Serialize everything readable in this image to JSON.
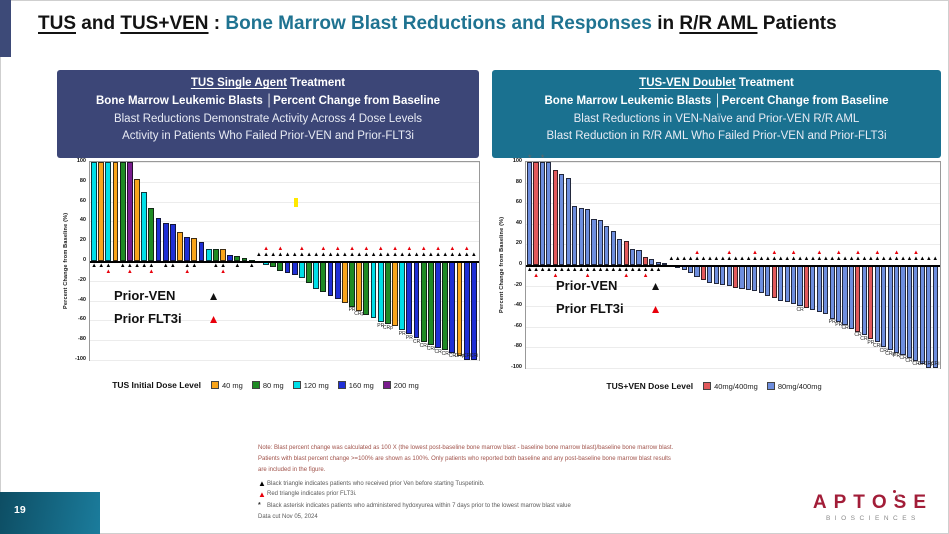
{
  "title": {
    "seg_tus": "TUS",
    "seg_and": " and ",
    "seg_tusven": "TUS+VEN",
    "seg_colon": " : ",
    "seg_main": "Bone Marrow Blast Reductions and Responses",
    "seg_in": " in ",
    "seg_rraml": "R/R AML",
    "seg_patients": " Patients"
  },
  "left_panel_header": {
    "line1_underlined": "TUS Single Agent",
    "line1_rest": " Treatment",
    "line2": "Bone Marrow Leukemic Blasts │Percent Change from Baseline",
    "line3": "Blast Reductions Demonstrate Activity Across 4 Dose Levels",
    "line4": "Activity in Patients Who Failed Prior-VEN and Prior-FLT3i",
    "bg_color": "#3C4677"
  },
  "right_panel_header": {
    "line1_underlined": "TUS-VEN Doublet",
    "line1_rest": " Treatment",
    "line2": "Bone Marrow Leukemic Blasts │Percent Change from Baseline",
    "line3": "Blast Reductions in VEN-Naïve and Prior-VEN R/R AML",
    "line4": "Blast Reduction in R/R AML Who Failed Prior-VEN and Prior-FLT3i",
    "bg_color": "#1A7190"
  },
  "annotation": {
    "prior_ven": "Prior-VEN",
    "prior_flt3i": "Prior FLT3i",
    "triangle": "▲"
  },
  "footnotes": {
    "note": "Note: Blast percent change was calculated as 100 X (the lowest post-baseline bone marrow blast - baseline bone marrow blast)/baseline bone marrow blast. Patients with blast percent change >=100% are shown as 100%. Only patients who reported both baseline and any post-baseline bone marrow blast results are included in the figure.",
    "black_triangle_line": "Black triangle indicates patients who received prior Ven before starting Tuspetinib.",
    "red_triangle_line": "Red triangle indicates prior FLT3i.",
    "asterisk_mark": "*",
    "asterisk_line": "Black asterisk indicates patients who administered hydoxyurea within 7 days prior to the lowest marrow blast value",
    "datacut": "Data cut Nov 05, 2024"
  },
  "page_number": "19",
  "logo": {
    "p1": "APT",
    "o": "O",
    "p2": "SE",
    "sub": "BIOSCIENCES",
    "brand_color": "#A21D38"
  },
  "chart_data": [
    {
      "type": "bar",
      "variant": "waterfall",
      "ylabel": "Percent Change from Baseline (%)",
      "ylim": [
        -100,
        100
      ],
      "yticks": [
        100,
        80,
        60,
        40,
        20,
        0,
        -20,
        -40,
        -60,
        -80,
        -100
      ],
      "grid": true,
      "legend_position": "bottom",
      "legend_title": "TUS Initial Dose Level",
      "colors": {
        "o": "#F9A51B",
        "g": "#1F8B24",
        "c": "#00DFE8",
        "b": "#1F2FD6",
        "p": "#7A1C8E"
      },
      "legend": [
        {
          "label": "40 mg",
          "key": "o",
          "color": "#F9A51B"
        },
        {
          "label": "80 mg",
          "key": "g",
          "color": "#1F8B24"
        },
        {
          "label": "120 mg",
          "key": "c",
          "color": "#00DFE8"
        },
        {
          "label": "160 mg",
          "key": "b",
          "color": "#1F2FD6"
        },
        {
          "label": "200 mg",
          "key": "p",
          "color": "#7A1C8E"
        }
      ],
      "marker_legend": {
        "black_triangle": "Prior-VEN",
        "red_triangle": "Prior FLT3i"
      },
      "bars": [
        {
          "v": 100,
          "c": "c",
          "m": "b"
        },
        {
          "v": 100,
          "c": "o",
          "m": "b"
        },
        {
          "v": 100,
          "c": "c",
          "m": "br"
        },
        {
          "v": 100,
          "c": "o"
        },
        {
          "v": 100,
          "c": "g",
          "m": "b"
        },
        {
          "v": 100,
          "c": "p",
          "m": "br"
        },
        {
          "v": 83,
          "c": "o",
          "m": "b"
        },
        {
          "v": 70,
          "c": "c",
          "m": "b"
        },
        {
          "v": 54,
          "c": "g",
          "m": "br"
        },
        {
          "v": 43,
          "c": "b"
        },
        {
          "v": 38,
          "c": "b",
          "m": "b"
        },
        {
          "v": 37,
          "c": "b",
          "m": "b"
        },
        {
          "v": 29,
          "c": "o"
        },
        {
          "v": 24,
          "c": "b",
          "m": "br"
        },
        {
          "v": 23,
          "c": "o",
          "m": "b"
        },
        {
          "v": 19,
          "c": "b"
        },
        {
          "v": 12,
          "c": "c"
        },
        {
          "v": 12,
          "c": "g",
          "m": "b"
        },
        {
          "v": 12,
          "c": "o",
          "m": "br"
        },
        {
          "v": 6,
          "c": "b"
        },
        {
          "v": 5,
          "c": "g",
          "m": "b"
        },
        {
          "v": 3,
          "c": "g"
        },
        {
          "v": 1,
          "c": "g",
          "m": "b"
        },
        {
          "v": -2,
          "c": "c",
          "m": "b"
        },
        {
          "v": -4,
          "c": "c",
          "m": "br"
        },
        {
          "v": -6,
          "c": "g",
          "m": "b"
        },
        {
          "v": -10,
          "c": "g",
          "m": "br"
        },
        {
          "v": -12,
          "c": "b",
          "m": "b"
        },
        {
          "v": -14,
          "c": "b",
          "m": "b"
        },
        {
          "v": -17,
          "c": "c",
          "m": "br"
        },
        {
          "v": -22,
          "c": "g",
          "m": "b"
        },
        {
          "v": -28,
          "c": "c",
          "m": "b"
        },
        {
          "v": -31,
          "c": "g",
          "m": "br"
        },
        {
          "v": -35,
          "c": "b",
          "m": "b"
        },
        {
          "v": -38,
          "c": "b",
          "m": "br"
        },
        {
          "v": -42,
          "c": "o",
          "m": "b"
        },
        {
          "v": -46,
          "c": "g",
          "m": "br",
          "label": "PR"
        },
        {
          "v": -50,
          "c": "o",
          "m": "b",
          "label": "CRp"
        },
        {
          "v": -55,
          "c": "g",
          "m": "br"
        },
        {
          "v": -58,
          "c": "c",
          "m": "b"
        },
        {
          "v": -62,
          "c": "c",
          "m": "br",
          "label": "PR"
        },
        {
          "v": -64,
          "c": "g",
          "m": "b",
          "label": "CRp"
        },
        {
          "v": -66,
          "c": "o",
          "m": "br"
        },
        {
          "v": -70,
          "c": "c",
          "m": "b",
          "label": "PR"
        },
        {
          "v": -74,
          "c": "b",
          "m": "br",
          "label": "PR"
        },
        {
          "v": -78,
          "c": "b",
          "m": "b",
          "label": "CR"
        },
        {
          "v": -82,
          "c": "g",
          "m": "br",
          "label": "CRi"
        },
        {
          "v": -85,
          "c": "g",
          "m": "b",
          "label": "CRi"
        },
        {
          "v": -88,
          "c": "b",
          "m": "br",
          "label": "CR"
        },
        {
          "v": -90,
          "c": "g",
          "m": "b",
          "label": "CR"
        },
        {
          "v": -93,
          "c": "b",
          "m": "br",
          "label": "CR"
        },
        {
          "v": -96,
          "c": "o",
          "m": "b",
          "label": "CRp"
        },
        {
          "v": -100,
          "c": "b",
          "m": "br",
          "label": "CR"
        },
        {
          "v": -100,
          "c": "b",
          "m": "b",
          "label": "CRi"
        }
      ]
    },
    {
      "type": "bar",
      "variant": "waterfall",
      "ylabel": "Percent Change from Baseline (%)",
      "ylim": [
        -100,
        100
      ],
      "yticks": [
        100,
        80,
        60,
        40,
        20,
        0,
        -20,
        -40,
        -60,
        -80,
        -100
      ],
      "grid": true,
      "legend_position": "bottom",
      "legend_title": "TUS+VEN Dose Level",
      "colors": {
        "r": "#E25A5C",
        "B": "#6E8EDE"
      },
      "legend": [
        {
          "label": "40mg/400mg",
          "key": "r",
          "color": "#E25A5C"
        },
        {
          "label": "80mg/400mg",
          "key": "B",
          "color": "#6E8EDE"
        }
      ],
      "marker_legend": {
        "black_triangle": "Prior-VEN",
        "red_triangle": "Prior FLT3i",
        "asterisk": "hydoxyurea within 7 days"
      },
      "bars": [
        {
          "v": 100,
          "c": "B",
          "m": "b",
          "s": true
        },
        {
          "v": 100,
          "c": "r",
          "m": "br"
        },
        {
          "v": 100,
          "c": "B",
          "m": "b",
          "s": true
        },
        {
          "v": 100,
          "c": "B",
          "m": "b"
        },
        {
          "v": 92,
          "c": "r",
          "m": "br"
        },
        {
          "v": 88,
          "c": "B",
          "m": "b"
        },
        {
          "v": 84,
          "c": "B",
          "m": "b"
        },
        {
          "v": 57,
          "c": "B",
          "m": "b"
        },
        {
          "v": 55,
          "c": "B",
          "m": "b"
        },
        {
          "v": 54,
          "c": "B",
          "m": "br"
        },
        {
          "v": 45,
          "c": "B",
          "m": "b"
        },
        {
          "v": 44,
          "c": "B",
          "m": "b"
        },
        {
          "v": 38,
          "c": "B",
          "m": "b"
        },
        {
          "v": 33,
          "c": "B",
          "m": "b"
        },
        {
          "v": 25,
          "c": "B",
          "m": "b"
        },
        {
          "v": 23,
          "c": "r",
          "m": "br"
        },
        {
          "v": 16,
          "c": "B",
          "m": "b"
        },
        {
          "v": 15,
          "c": "B",
          "m": "b"
        },
        {
          "v": 8,
          "c": "r",
          "m": "br"
        },
        {
          "v": 6,
          "c": "B",
          "m": "b"
        },
        {
          "v": 3,
          "c": "B",
          "m": "b"
        },
        {
          "v": 2,
          "c": "B"
        },
        {
          "v": -1,
          "c": "B",
          "m": "b"
        },
        {
          "v": -3,
          "c": "B",
          "m": "b"
        },
        {
          "v": -5,
          "c": "B",
          "m": "b"
        },
        {
          "v": -8,
          "c": "B",
          "m": "b"
        },
        {
          "v": -12,
          "c": "B",
          "m": "br"
        },
        {
          "v": -15,
          "c": "r",
          "m": "b"
        },
        {
          "v": -17,
          "c": "B",
          "m": "b"
        },
        {
          "v": -18,
          "c": "B",
          "m": "b"
        },
        {
          "v": -19,
          "c": "B",
          "m": "b"
        },
        {
          "v": -20,
          "c": "B",
          "m": "br"
        },
        {
          "v": -22,
          "c": "r",
          "m": "b"
        },
        {
          "v": -23,
          "c": "B",
          "m": "b"
        },
        {
          "v": -24,
          "c": "B",
          "m": "b"
        },
        {
          "v": -25,
          "c": "B",
          "m": "br"
        },
        {
          "v": -27,
          "c": "B",
          "m": "b"
        },
        {
          "v": -30,
          "c": "B",
          "m": "b"
        },
        {
          "v": -32,
          "c": "r",
          "m": "br"
        },
        {
          "v": -35,
          "c": "B",
          "m": "b"
        },
        {
          "v": -36,
          "c": "B",
          "m": "b"
        },
        {
          "v": -38,
          "c": "B",
          "m": "br"
        },
        {
          "v": -40,
          "c": "B",
          "m": "b",
          "label": "CR"
        },
        {
          "v": -42,
          "c": "r",
          "m": "b"
        },
        {
          "v": -44,
          "c": "B",
          "m": "b"
        },
        {
          "v": -46,
          "c": "B",
          "m": "br"
        },
        {
          "v": -48,
          "c": "B",
          "m": "b"
        },
        {
          "v": -52,
          "c": "B",
          "m": "b",
          "label": "PR"
        },
        {
          "v": -55,
          "c": "B",
          "m": "br",
          "label": "PR"
        },
        {
          "v": -58,
          "c": "B",
          "m": "b",
          "label": "CR"
        },
        {
          "v": -62,
          "c": "B",
          "m": "b"
        },
        {
          "v": -65,
          "c": "r",
          "m": "br",
          "label": "CR"
        },
        {
          "v": -68,
          "c": "B",
          "m": "b",
          "label": "CRi"
        },
        {
          "v": -72,
          "c": "r",
          "m": "b",
          "label": "PR"
        },
        {
          "v": -75,
          "c": "B",
          "m": "br",
          "label": "CRi"
        },
        {
          "v": -80,
          "c": "B",
          "m": "b",
          "label": "CRi"
        },
        {
          "v": -83,
          "c": "B",
          "m": "b",
          "label": "CRp"
        },
        {
          "v": -85,
          "c": "B",
          "m": "br",
          "label": "PR"
        },
        {
          "v": -87,
          "c": "B",
          "m": "b",
          "label": "CR"
        },
        {
          "v": -90,
          "c": "B",
          "m": "b",
          "label": "CRi"
        },
        {
          "v": -93,
          "c": "B",
          "m": "br",
          "label": "CR"
        },
        {
          "v": -96,
          "c": "B",
          "m": "b",
          "label": "CRi"
        },
        {
          "v": -100,
          "c": "B",
          "m": "b",
          "label": "CRp"
        },
        {
          "v": -100,
          "c": "B",
          "m": "b",
          "label": "CRi"
        }
      ]
    }
  ]
}
